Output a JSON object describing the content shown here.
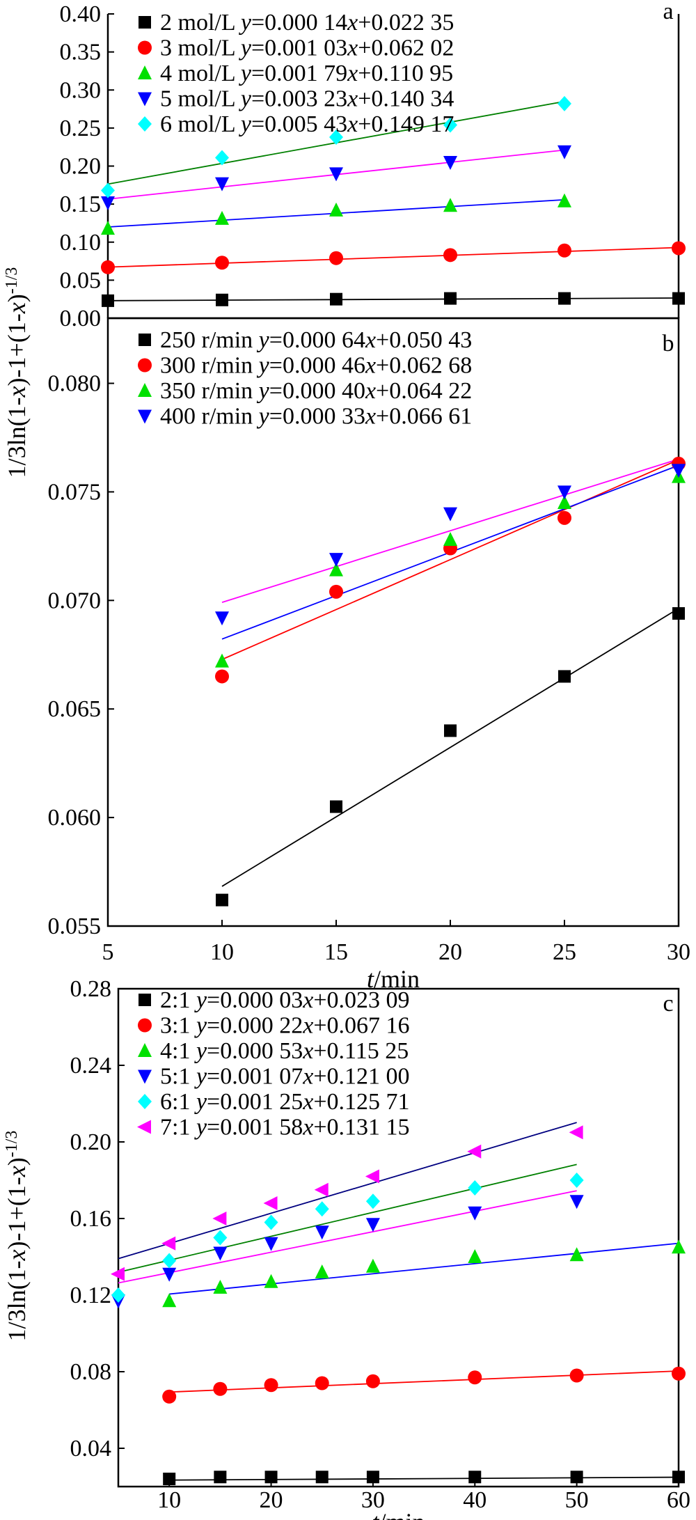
{
  "colors": {
    "black": "#000000",
    "red": "#ff0000",
    "green": "#00e000",
    "blue": "#0000ff",
    "cyan": "#00ffff",
    "magenta": "#ff00ff",
    "fit_green": "#008000"
  },
  "chart_data": [
    {
      "panel": "a",
      "type": "scatter",
      "xlim": [
        5,
        30
      ],
      "ylim": [
        0,
        0.4
      ],
      "yticks": [
        "0.00",
        "0.05",
        "0.10",
        "0.15",
        "0.20",
        "0.25",
        "0.30",
        "0.35",
        "0.40"
      ],
      "ytick_values": [
        0,
        0.05,
        0.1,
        0.15,
        0.2,
        0.25,
        0.3,
        0.35,
        0.4
      ],
      "xlabel": "",
      "legend_position": "top",
      "series": [
        {
          "name": "2 mol/L",
          "eq_head": "y",
          "eq_a": "=0.000 14",
          "eq_b": "x",
          "eq_c": "+0.022 35",
          "marker": "square",
          "color": "#000000",
          "fit_color": "#000000",
          "slope": 0.00014,
          "intercept": 0.02235,
          "x": [
            5,
            10,
            15,
            20,
            25,
            30
          ],
          "y": [
            0.023,
            0.024,
            0.025,
            0.026,
            0.026,
            0.026
          ]
        },
        {
          "name": "3 mol/L",
          "eq_head": "y",
          "eq_a": "=0.001 03",
          "eq_b": "x",
          "eq_c": "+0.062 02",
          "marker": "circle",
          "color": "#ff0000",
          "fit_color": "#ff0000",
          "slope": 0.00103,
          "intercept": 0.06202,
          "x": [
            5,
            10,
            15,
            20,
            25,
            30
          ],
          "y": [
            0.067,
            0.073,
            0.079,
            0.083,
            0.089,
            0.092
          ]
        },
        {
          "name": "4 mol/L",
          "eq_head": "y",
          "eq_a": "=0.001 79",
          "eq_b": "x",
          "eq_c": "+0.110 95",
          "marker": "triangle-up",
          "color": "#00e000",
          "fit_color": "#0000ff",
          "slope": 0.00179,
          "intercept": 0.11095,
          "x": [
            5,
            10,
            15,
            20,
            25
          ],
          "y": [
            0.118,
            0.131,
            0.142,
            0.148,
            0.154
          ]
        },
        {
          "name": "5 mol/L",
          "eq_head": "y",
          "eq_a": "=0.003 23",
          "eq_b": "x",
          "eq_c": "+0.140 34",
          "marker": "triangle-down",
          "color": "#0000ff",
          "fit_color": "#ff00ff",
          "slope": 0.00323,
          "intercept": 0.14034,
          "x": [
            5,
            10,
            15,
            20,
            25
          ],
          "y": [
            0.152,
            0.177,
            0.19,
            0.205,
            0.219
          ]
        },
        {
          "name": "6 mol/L",
          "eq_head": "y",
          "eq_a": "=0.005 43",
          "eq_b": "x",
          "eq_c": "+0.149 17",
          "marker": "diamond",
          "color": "#00ffff",
          "fit_color": "#008000",
          "slope": 0.00543,
          "intercept": 0.14917,
          "x": [
            5,
            10,
            15,
            20,
            25
          ],
          "y": [
            0.168,
            0.211,
            0.238,
            0.254,
            0.282
          ]
        }
      ]
    },
    {
      "panel": "b",
      "type": "scatter",
      "xlim": [
        5,
        30
      ],
      "ylim": [
        0.055,
        0.083
      ],
      "yticks": [
        "0.055",
        "0.060",
        "0.065",
        "0.070",
        "0.075",
        "0.080"
      ],
      "ytick_values": [
        0.055,
        0.06,
        0.065,
        0.07,
        0.075,
        0.08
      ],
      "xticks": [
        "5",
        "10",
        "15",
        "20",
        "25",
        "30"
      ],
      "xtick_values": [
        5,
        10,
        15,
        20,
        25,
        30
      ],
      "xlabel_italic": "t",
      "xlabel_rest": "/min",
      "legend_position": "top",
      "series": [
        {
          "name": "250 r/min",
          "eq_head": " y",
          "eq_a": "=0.000 64",
          "eq_b": "x",
          "eq_c": "+0.050 43",
          "marker": "square",
          "color": "#000000",
          "fit_color": "#000000",
          "slope": 0.00064,
          "intercept": 0.05043,
          "x": [
            10,
            15,
            20,
            25,
            30
          ],
          "y": [
            0.0562,
            0.0605,
            0.064,
            0.0665,
            0.0694
          ]
        },
        {
          "name": "300 r/min",
          "eq_head": " y",
          "eq_a": "=0.000 46",
          "eq_b": "x",
          "eq_c": "+0.062 68",
          "marker": "circle",
          "color": "#ff0000",
          "fit_color": "#ff0000",
          "slope": 0.00046,
          "intercept": 0.06268,
          "x": [
            10,
            15,
            20,
            25,
            30
          ],
          "y": [
            0.0665,
            0.0704,
            0.0724,
            0.0738,
            0.0763
          ]
        },
        {
          "name": "350 r/min",
          "eq_head": " y",
          "eq_a": "=0.000 40",
          "eq_b": "x",
          "eq_c": "+0.064 22",
          "marker": "triangle-up",
          "color": "#00e000",
          "fit_color": "#0000ff",
          "slope": 0.0004,
          "intercept": 0.06422,
          "x": [
            10,
            15,
            20,
            25,
            30
          ],
          "y": [
            0.0672,
            0.0714,
            0.0728,
            0.0745,
            0.0757
          ]
        },
        {
          "name": "400 r/min",
          "eq_head": " y",
          "eq_a": "=0.000 33",
          "eq_b": "x",
          "eq_c": "+0.066 61",
          "marker": "triangle-down",
          "color": "#0000ff",
          "fit_color": "#ff00ff",
          "slope": 0.00033,
          "intercept": 0.06661,
          "x": [
            10,
            15,
            20,
            25,
            30
          ],
          "y": [
            0.0692,
            0.0719,
            0.074,
            0.075,
            0.076
          ]
        }
      ]
    },
    {
      "panel": "c",
      "type": "scatter",
      "xlim": [
        5,
        60
      ],
      "ylim": [
        0.02,
        0.28
      ],
      "yticks": [
        "0.04",
        "0.08",
        "0.12",
        "0.16",
        "0.20",
        "0.24",
        "0.28"
      ],
      "ytick_values": [
        0.04,
        0.08,
        0.12,
        0.16,
        0.2,
        0.24,
        0.28
      ],
      "xticks": [
        "10",
        "20",
        "30",
        "40",
        "50",
        "60"
      ],
      "xtick_values": [
        10,
        20,
        30,
        40,
        50,
        60
      ],
      "xlabel_italic": "t",
      "xlabel_rest": "/min",
      "legend_position": "top",
      "series": [
        {
          "name": "2:1",
          "eq_head": " y",
          "eq_a": "=0.000 03",
          "eq_b": "x",
          "eq_c": "+0.023 09",
          "marker": "square",
          "color": "#000000",
          "fit_color": "#000000",
          "slope": 3e-05,
          "intercept": 0.02309,
          "x": [
            10,
            15,
            20,
            25,
            30,
            40,
            50,
            60
          ],
          "y": [
            0.024,
            0.025,
            0.025,
            0.025,
            0.025,
            0.025,
            0.025,
            0.025
          ]
        },
        {
          "name": "3:1",
          "eq_head": " y",
          "eq_a": "=0.000 22",
          "eq_b": "x",
          "eq_c": "+0.067 16",
          "marker": "circle",
          "color": "#ff0000",
          "fit_color": "#ff0000",
          "slope": 0.00022,
          "intercept": 0.06716,
          "x": [
            10,
            15,
            20,
            25,
            30,
            40,
            50,
            60
          ],
          "y": [
            0.067,
            0.071,
            0.073,
            0.074,
            0.075,
            0.077,
            0.078,
            0.079
          ]
        },
        {
          "name": "4:1",
          "eq_head": " y",
          "eq_a": "=0.000 53",
          "eq_b": "x",
          "eq_c": "+0.115 25",
          "marker": "triangle-up",
          "color": "#00e000",
          "fit_color": "#0000ff",
          "slope": 0.00053,
          "intercept": 0.11525,
          "x": [
            10,
            15,
            20,
            25,
            30,
            40,
            50,
            60
          ],
          "y": [
            0.117,
            0.124,
            0.127,
            0.132,
            0.135,
            0.14,
            0.141,
            0.145
          ]
        },
        {
          "name": "5:1",
          "eq_head": " y",
          "eq_a": "=0.001 07",
          "eq_b": "x",
          "eq_c": "+0.121 00",
          "marker": "triangle-down",
          "color": "#0000ff",
          "fit_color": "#ff00ff",
          "slope": 0.00107,
          "intercept": 0.121,
          "x": [
            5,
            10,
            15,
            20,
            25,
            30,
            40,
            50
          ],
          "y": [
            0.117,
            0.131,
            0.142,
            0.147,
            0.153,
            0.157,
            0.163,
            0.169
          ]
        },
        {
          "name": "6:1",
          "eq_head": " y",
          "eq_a": "=0.001 25",
          "eq_b": "x",
          "eq_c": "+0.125 71",
          "marker": "diamond",
          "color": "#00ffff",
          "fit_color": "#008000",
          "slope": 0.00125,
          "intercept": 0.12571,
          "x": [
            5,
            10,
            15,
            20,
            25,
            30,
            40,
            50
          ],
          "y": [
            0.12,
            0.138,
            0.15,
            0.158,
            0.165,
            0.169,
            0.176,
            0.18
          ]
        },
        {
          "name": "7:1",
          "eq_head": " y",
          "eq_a": "=0.001 58",
          "eq_b": "x",
          "eq_c": "+0.131 15",
          "marker": "triangle-left",
          "color": "#ff00ff",
          "fit_color": "#000080",
          "slope": 0.00158,
          "intercept": 0.13115,
          "x": [
            5,
            10,
            15,
            20,
            25,
            30,
            40,
            50
          ],
          "y": [
            0.131,
            0.147,
            0.16,
            0.168,
            0.175,
            0.182,
            0.195,
            0.205
          ]
        }
      ]
    }
  ],
  "shared_ylabel": {
    "p1": "1/3ln(1-",
    "p2": "x",
    "p3": ")-1+(1-",
    "p4": "x",
    "p5": ")",
    "sup": "-1/3"
  }
}
